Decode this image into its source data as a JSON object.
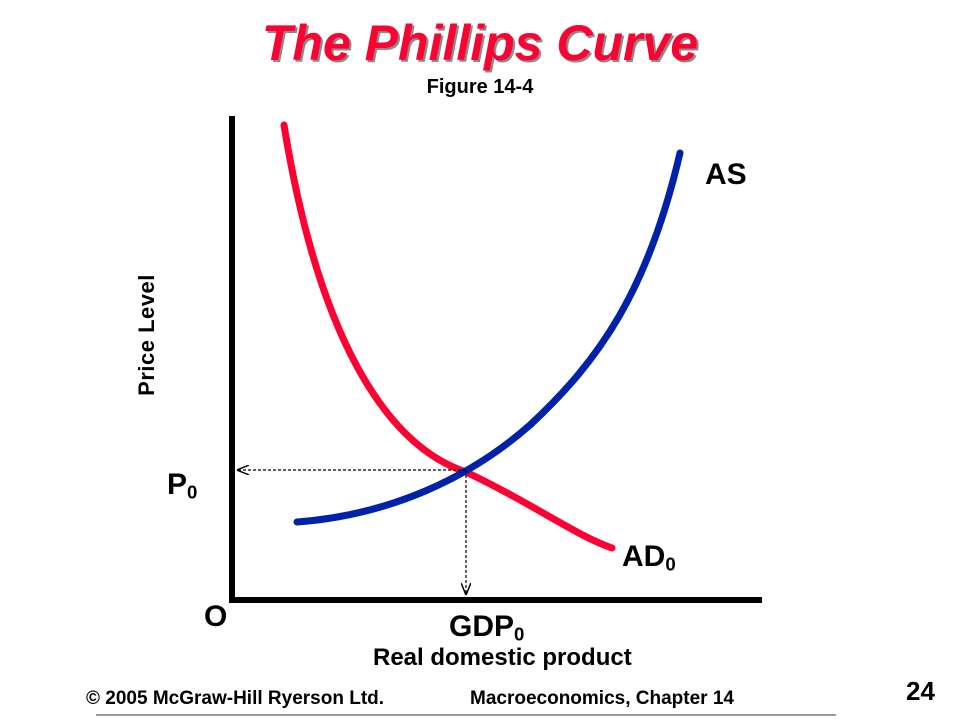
{
  "title": "The Phillips Curve",
  "subtitle": "Figure 14-4",
  "axes": {
    "y_label": "Price Level",
    "x_label": "Real domestic product",
    "origin_label": "O"
  },
  "curves": {
    "as": {
      "label": "AS",
      "color": "#0022aa"
    },
    "ad": {
      "label": "AD",
      "subscript": "0",
      "color": "#ff0033"
    }
  },
  "equilibrium": {
    "price_label": "P",
    "price_subscript": "0",
    "gdp_label": "GDP",
    "gdp_subscript": "0"
  },
  "footer": {
    "copyright": "© 2005 McGraw-Hill Ryerson Ltd.",
    "course": "Macroeconomics, Chapter 14",
    "page_number": "24"
  }
}
